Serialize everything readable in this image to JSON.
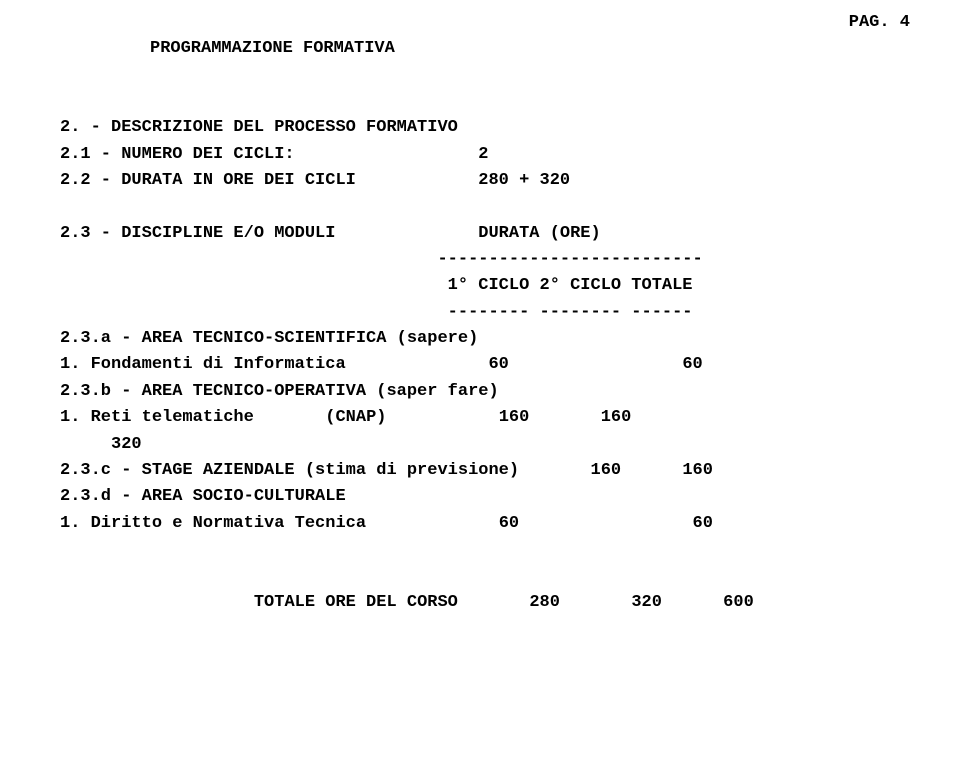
{
  "page_number_label": "PAG. 4",
  "title": "PROGRAMMAZIONE FORMATIVA",
  "s2": {
    "heading": "2. - DESCRIZIONE DEL PROCESSO FORMATIVO",
    "l1_label": "2.1 - NUMERO DEI CICLI:",
    "l1_val": "2",
    "l2_label": "2.2 - DURATA IN ORE DEI CICLI",
    "l2_val": "280 + 320",
    "l3_label": "2.3 - DISCIPLINE E/O MODULI",
    "l3_val": "DURATA (ORE)",
    "dash1": "--------------------------",
    "hdr": "1° CICLO 2° CICLO TOTALE",
    "dash2": "-------- -------- ------",
    "a_label": "2.3.a - AREA TECNICO-SCIENTIFICA (sapere)",
    "a1_label": "1. Fondamenti di Informatica",
    "a1_v1": "60",
    "a1_v2": "60",
    "b_label": "2.3.b - AREA TECNICO-OPERATIVA (saper fare)",
    "b1_label": "1. Reti telematiche",
    "b1_paren": "(CNAP)",
    "b1_v1": "160",
    "b1_v2": "160",
    "b1_cont": "320",
    "c_label": "2.3.c - STAGE AZIENDALE (stima di previsione)",
    "c_v1": "160",
    "c_v2": "160",
    "d_label": "2.3.d - AREA SOCIO-CULTURALE",
    "d1_label": "1. Diritto e Normativa Tecnica",
    "d1_v1": "60",
    "d1_v2": "60",
    "tot_label": "TOTALE ORE DEL CORSO",
    "tot_v1": "280",
    "tot_v2": "320",
    "tot_v3": "600"
  }
}
